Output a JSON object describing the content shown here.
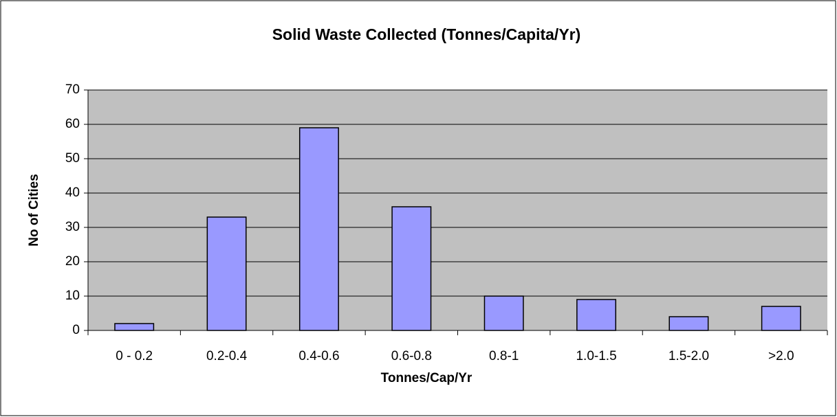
{
  "chart_data": {
    "type": "bar",
    "title": "Solid Waste Collected (Tonnes/Capita/Yr)",
    "x_label": "Tonnes/Cap/Yr",
    "y_label": "No of Cities",
    "categories": [
      "0 - 0.2",
      "0.2-0.4",
      "0.4-0.6",
      "0.6-0.8",
      "0.8-1",
      "1.0-1.5",
      "1.5-2.0",
      ">2.0"
    ],
    "values": [
      2,
      33,
      59,
      36,
      10,
      9,
      4,
      7
    ],
    "color": "#9999ff",
    "ylim": [
      0,
      70
    ],
    "yticks": [
      0,
      10,
      20,
      30,
      40,
      50,
      60,
      70
    ],
    "grid": true
  }
}
